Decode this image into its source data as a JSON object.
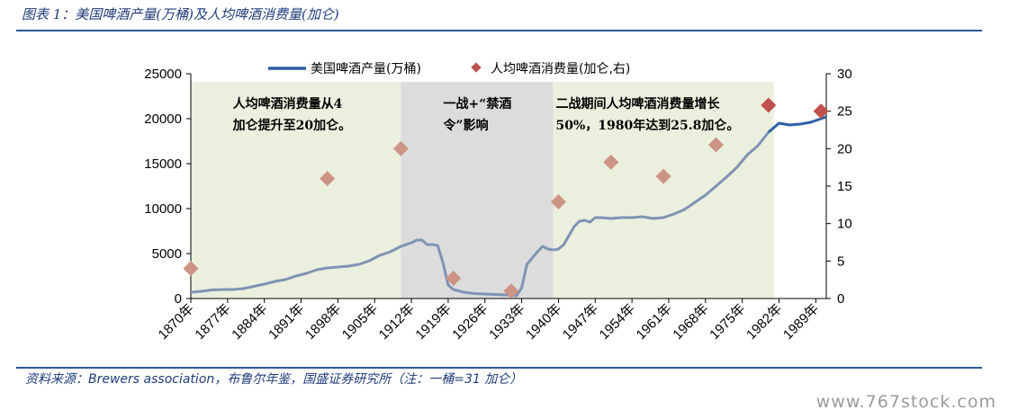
{
  "header": {
    "title": "图表 1：美国啤酒产量(万桶)及人均啤酒消费量(加仑)"
  },
  "footer": {
    "source": "资料来源：Brewers association，布鲁尔年鉴，国盛证券研究所（注：一桶=31 加仑）",
    "watermark": "www.767stock.com"
  },
  "chart_data": {
    "type": "line",
    "colors": {
      "line": "#2e5fa8",
      "line_gray": "#7f93b4",
      "marker": "#cd9485",
      "marker_dark": "#c0504d",
      "region_green": "#ebefdd",
      "region_gray": "#dcdcdc"
    },
    "legend": {
      "line_label": "美国啤酒产量(万桶)",
      "marker_label": "人均啤酒消费量(加仑,右)"
    },
    "x_tick_labels": [
      "1870年",
      "1877年",
      "1884年",
      "1891年",
      "1898年",
      "1905年",
      "1912年",
      "1919年",
      "1926年",
      "1933年",
      "1940年",
      "1947年",
      "1954年",
      "1961年",
      "1968年",
      "1975年",
      "1982年",
      "1989年"
    ],
    "xlim": [
      1870,
      1991
    ],
    "y_left": {
      "ticks": [
        "0",
        "5000",
        "10000",
        "15000",
        "20000",
        "25000"
      ],
      "ylim": [
        0,
        25000
      ]
    },
    "y_right": {
      "ticks": [
        "0",
        "5",
        "10",
        "15",
        "20",
        "25",
        "30"
      ],
      "ylim": [
        0,
        30
      ]
    },
    "regions": [
      {
        "from": 1870,
        "to": 1910,
        "style": "green"
      },
      {
        "from": 1910,
        "to": 1939,
        "style": "gray"
      },
      {
        "from": 1939,
        "to": 1981,
        "style": "green"
      }
    ],
    "annotations": [
      {
        "lines": [
          "人均啤酒消费量从4",
          "加仑提升至20加仑。"
        ],
        "at_x": 1878,
        "at_y": 21800
      },
      {
        "lines": [
          "一战+“禁酒",
          "令”影响"
        ],
        "at_x": 1915,
        "at_y": 21800
      },
      {
        "lines": [
          "二战期间人均啤酒消费量增长",
          "50%，1980年达到25.8加仑。"
        ],
        "at_x": 1939.5,
        "at_y": 21800
      }
    ],
    "series": [
      {
        "name": "美国啤酒产量(万桶)",
        "axis": "left",
        "points": [
          [
            1870,
            700
          ],
          [
            1872,
            800
          ],
          [
            1874,
            950
          ],
          [
            1876,
            1000
          ],
          [
            1878,
            1000
          ],
          [
            1880,
            1100
          ],
          [
            1882,
            1350
          ],
          [
            1884,
            1600
          ],
          [
            1886,
            1900
          ],
          [
            1888,
            2100
          ],
          [
            1890,
            2500
          ],
          [
            1892,
            2800
          ],
          [
            1894,
            3200
          ],
          [
            1896,
            3400
          ],
          [
            1898,
            3500
          ],
          [
            1900,
            3600
          ],
          [
            1902,
            3800
          ],
          [
            1904,
            4200
          ],
          [
            1906,
            4800
          ],
          [
            1908,
            5200
          ],
          [
            1910,
            5800
          ],
          [
            1912,
            6200
          ],
          [
            1913,
            6500
          ],
          [
            1914,
            6500
          ],
          [
            1915,
            6000
          ],
          [
            1916,
            6000
          ],
          [
            1917,
            5900
          ],
          [
            1918,
            4000
          ],
          [
            1919,
            1500
          ],
          [
            1920,
            1000
          ],
          [
            1922,
            700
          ],
          [
            1924,
            550
          ],
          [
            1926,
            500
          ],
          [
            1928,
            450
          ],
          [
            1930,
            400
          ],
          [
            1932,
            300
          ],
          [
            1933,
            1200
          ],
          [
            1934,
            3800
          ],
          [
            1935,
            4500
          ],
          [
            1936,
            5200
          ],
          [
            1937,
            5800
          ],
          [
            1938,
            5500
          ],
          [
            1939,
            5400
          ],
          [
            1940,
            5500
          ],
          [
            1941,
            6000
          ],
          [
            1942,
            7000
          ],
          [
            1943,
            8000
          ],
          [
            1944,
            8600
          ],
          [
            1945,
            8700
          ],
          [
            1946,
            8500
          ],
          [
            1947,
            9000
          ],
          [
            1948,
            9000
          ],
          [
            1950,
            8900
          ],
          [
            1952,
            9000
          ],
          [
            1954,
            9000
          ],
          [
            1956,
            9100
          ],
          [
            1958,
            8900
          ],
          [
            1960,
            9000
          ],
          [
            1962,
            9400
          ],
          [
            1964,
            9900
          ],
          [
            1966,
            10700
          ],
          [
            1968,
            11500
          ],
          [
            1970,
            12500
          ],
          [
            1972,
            13500
          ],
          [
            1974,
            14600
          ],
          [
            1976,
            16000
          ],
          [
            1978,
            17000
          ],
          [
            1980,
            18500
          ],
          [
            1981,
            19000
          ],
          [
            1982,
            19500
          ],
          [
            1984,
            19300
          ],
          [
            1986,
            19400
          ],
          [
            1988,
            19600
          ],
          [
            1990,
            20000
          ],
          [
            1991,
            20200
          ]
        ]
      },
      {
        "name": "人均啤酒消费量(加仑,右)",
        "axis": "right",
        "type": "scatter",
        "points": [
          [
            1870,
            4.0
          ],
          [
            1896,
            16.0
          ],
          [
            1910,
            20.0
          ],
          [
            1920,
            2.7
          ],
          [
            1931,
            1.0
          ],
          [
            1940,
            12.9
          ],
          [
            1950,
            18.2
          ],
          [
            1960,
            16.3
          ],
          [
            1970,
            20.5
          ],
          [
            1980,
            25.8
          ],
          [
            1990,
            25.0
          ]
        ]
      }
    ]
  }
}
